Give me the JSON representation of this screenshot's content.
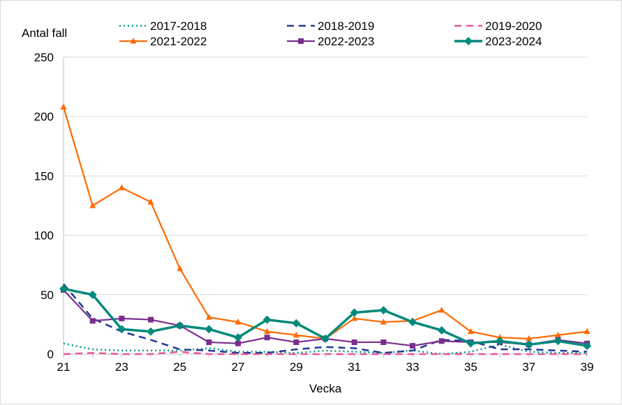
{
  "chart_data": {
    "type": "line",
    "ylabel": "Antal fall",
    "xlabel": "Vecka",
    "x": [
      21,
      22,
      23,
      24,
      25,
      26,
      27,
      28,
      29,
      30,
      31,
      32,
      33,
      34,
      35,
      36,
      37,
      38,
      39
    ],
    "xticks": [
      21,
      23,
      25,
      27,
      29,
      31,
      33,
      35,
      37,
      39
    ],
    "ylim": [
      0,
      250
    ],
    "yticks": [
      0,
      50,
      100,
      150,
      200,
      250
    ],
    "grid": true,
    "legend": "top",
    "series": [
      {
        "name": "2017-2018",
        "color": "#009688",
        "style": "dotted",
        "marker": "none",
        "values": [
          9,
          4,
          3,
          3,
          3,
          5,
          2,
          2,
          1,
          3,
          2,
          1,
          3,
          0,
          2,
          8,
          2,
          1,
          1
        ]
      },
      {
        "name": "2018-2019",
        "color": "#1f3a93",
        "style": "dashed",
        "marker": "none",
        "values": [
          59,
          30,
          19,
          12,
          4,
          3,
          1,
          1,
          4,
          6,
          5,
          1,
          3,
          12,
          11,
          4,
          4,
          3,
          2
        ]
      },
      {
        "name": "2019-2020",
        "color": "#e8559b",
        "style": "dashed",
        "marker": "none",
        "values": [
          0,
          1,
          0,
          0,
          2,
          0,
          0,
          0,
          0,
          0,
          0,
          0,
          0,
          0,
          0,
          0,
          0,
          0,
          0
        ]
      },
      {
        "name": "2021-2022",
        "color": "#ff6a00",
        "style": "solid",
        "marker": "triangle",
        "values": [
          208,
          125,
          140,
          128,
          72,
          31,
          27,
          19,
          16,
          13,
          30,
          27,
          28,
          37,
          19,
          14,
          13,
          16,
          19
        ]
      },
      {
        "name": "2022-2023",
        "color": "#7b2d8e",
        "style": "solid",
        "marker": "square",
        "values": [
          54,
          28,
          30,
          29,
          24,
          10,
          9,
          14,
          10,
          13,
          10,
          10,
          7,
          11,
          10,
          10,
          8,
          12,
          9
        ]
      },
      {
        "name": "2023-2024",
        "color": "#00897b",
        "style": "solid",
        "marker": "diamond",
        "values": [
          55,
          50,
          21,
          19,
          24,
          21,
          14,
          29,
          26,
          13,
          35,
          37,
          27,
          20,
          9,
          11,
          8,
          11,
          7
        ]
      }
    ]
  }
}
